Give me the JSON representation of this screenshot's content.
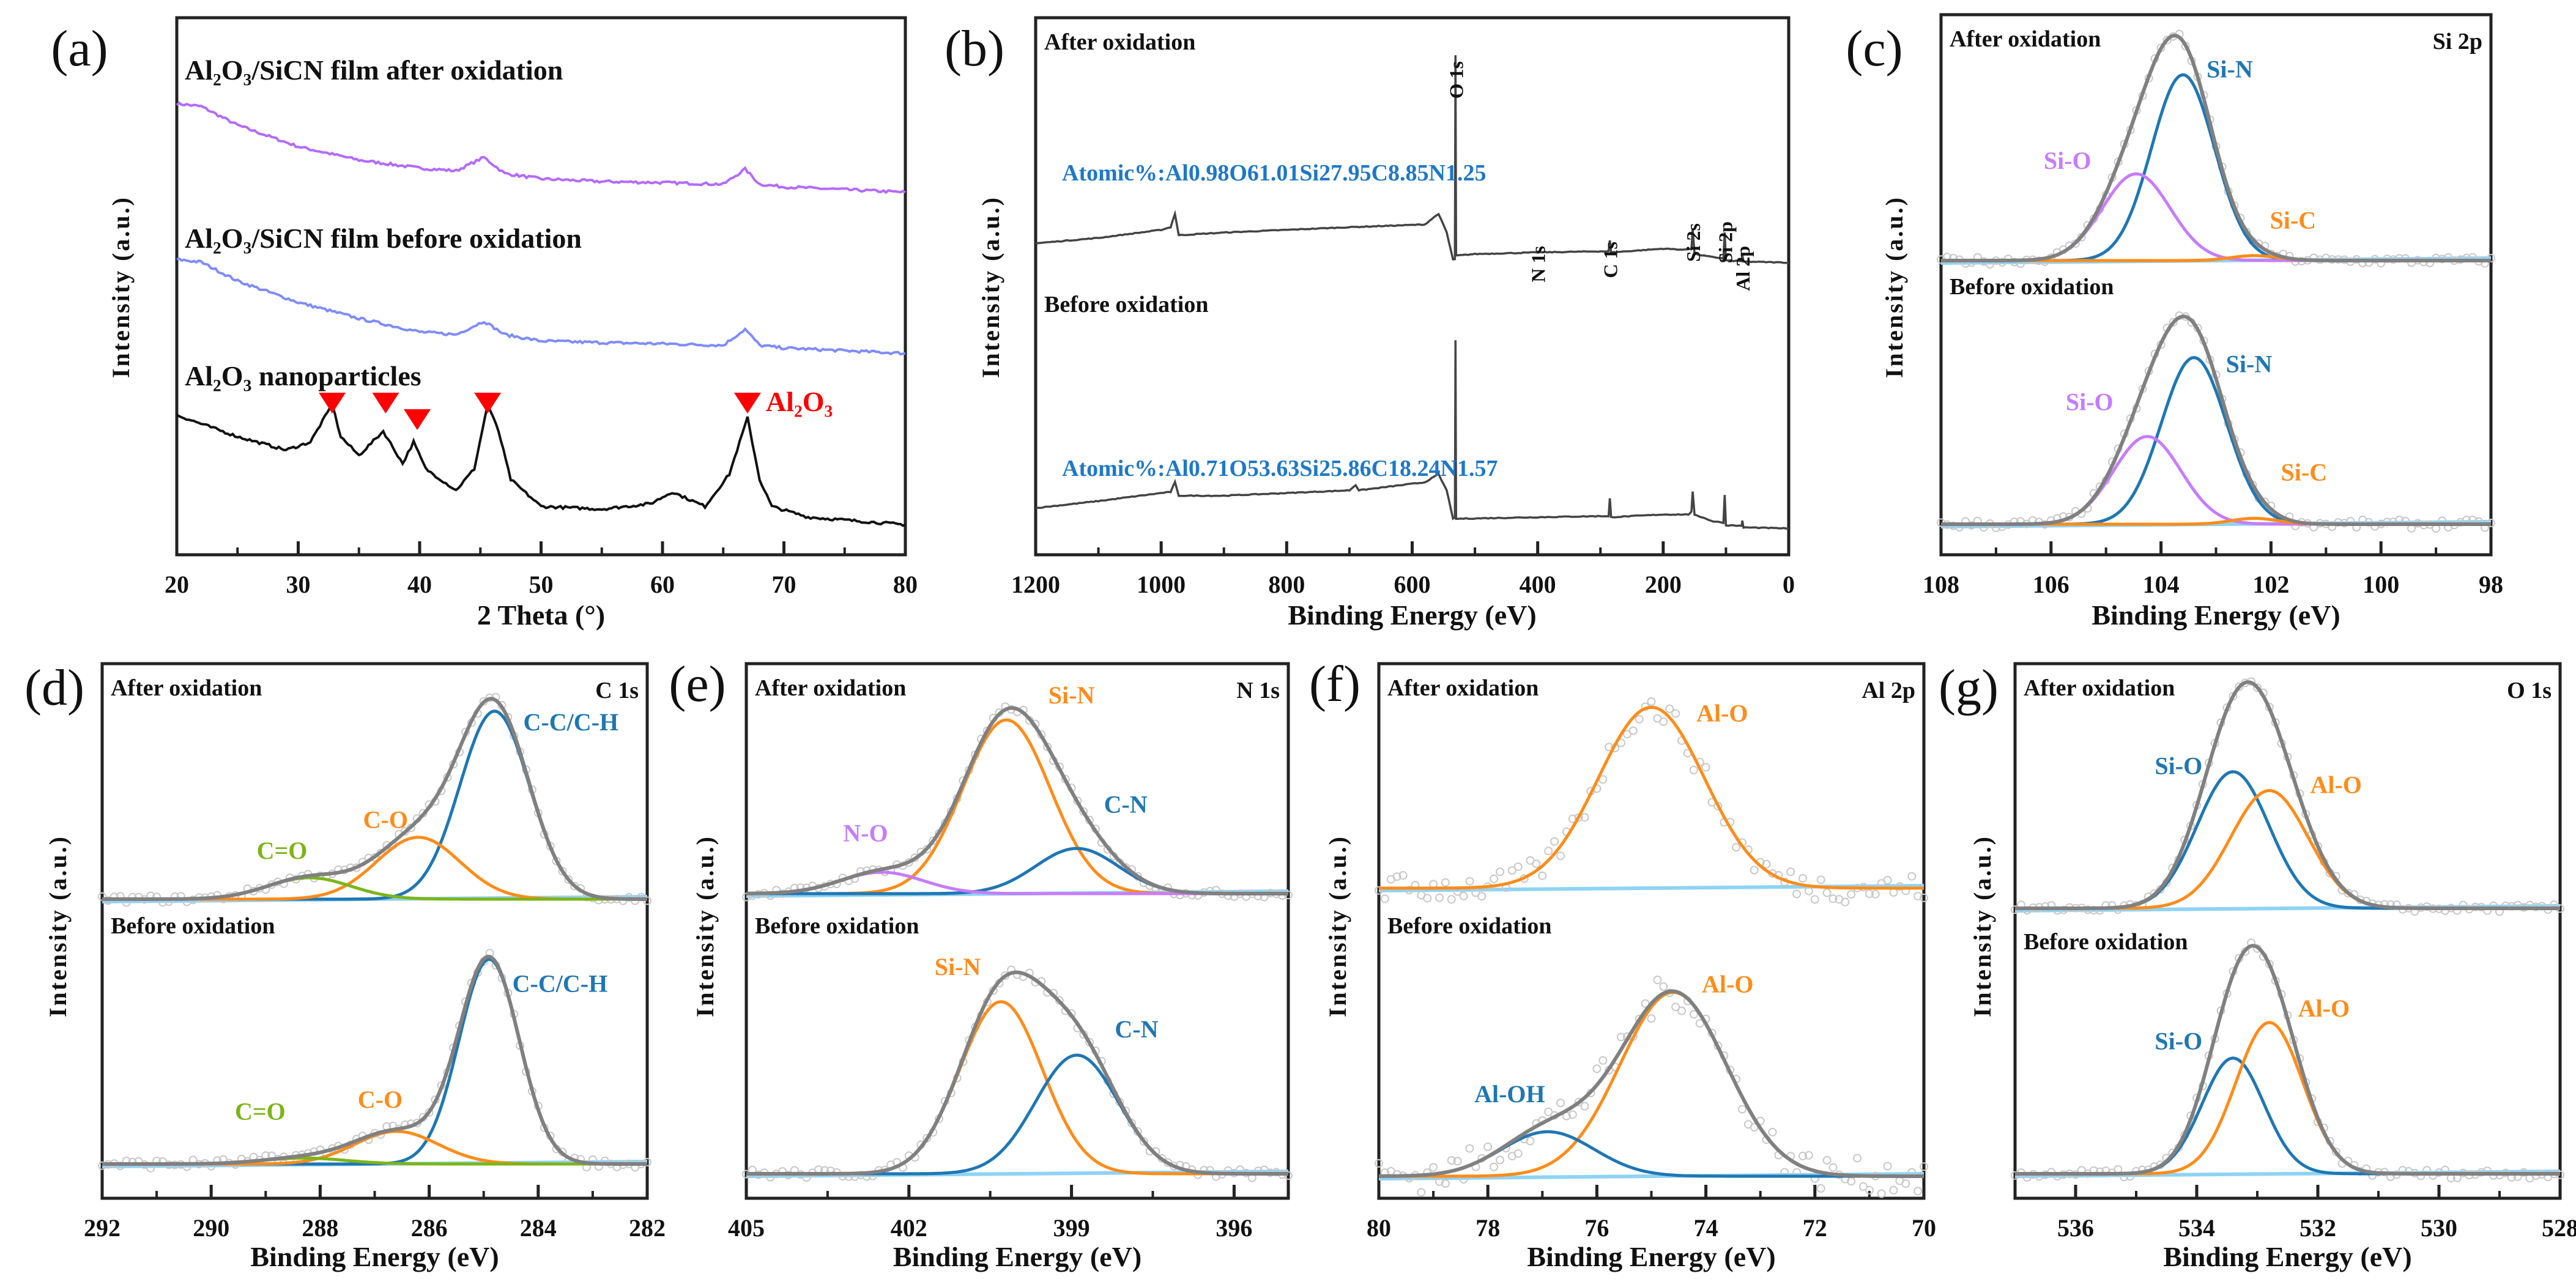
{
  "colors": {
    "blue": "#1f77b4",
    "purple": "#c77cff",
    "orange": "#ff8c1a",
    "green": "#7cb518",
    "gray": "#808080",
    "baseline": "#8fd3f5",
    "xrd_after": "#b36bff",
    "xrd_before": "#7f8cff",
    "xrd_nano": "#111111",
    "marker_red": "#ff0000",
    "atomic_blue": "#1e78c8"
  },
  "chart_data": [
    {
      "panel": "(a)",
      "type": "line",
      "xlabel": "2 Theta (°)",
      "ylabel": "Intensity (a.u.)",
      "xlim": [
        20,
        80
      ],
      "ylim": [
        0,
        100
      ],
      "xticks": [
        20,
        30,
        40,
        50,
        60,
        70,
        80
      ],
      "series": [
        {
          "name": "Al₂O₃/SiCN film after oxidation",
          "color": "#b36bff",
          "points": [
            [
              20,
              84
            ],
            [
              22,
              83.5
            ],
            [
              25,
              80
            ],
            [
              30,
              76
            ],
            [
              35,
              73.5
            ],
            [
              40,
              72
            ],
            [
              43,
              71.5
            ],
            [
              45.3,
              74
            ],
            [
              47,
              71
            ],
            [
              50,
              70
            ],
            [
              55,
              69.5
            ],
            [
              60,
              69.3
            ],
            [
              65,
              69
            ],
            [
              66.8,
              71.8
            ],
            [
              68,
              69
            ],
            [
              70,
              68.5
            ],
            [
              75,
              68
            ],
            [
              80,
              67.5
            ]
          ]
        },
        {
          "name": "Al₂O₃/SiCN film before oxidation",
          "color": "#7f8cff",
          "points": [
            [
              20,
              55
            ],
            [
              22,
              54.5
            ],
            [
              25,
              51
            ],
            [
              30,
              47
            ],
            [
              35,
              44
            ],
            [
              40,
              41.5
            ],
            [
              43,
              41
            ],
            [
              45.3,
              43.5
            ],
            [
              47,
              41
            ],
            [
              50,
              39.8
            ],
            [
              55,
              39.5
            ],
            [
              60,
              39.3
            ],
            [
              65,
              39
            ],
            [
              66.8,
              42
            ],
            [
              68,
              39
            ],
            [
              70,
              38.5
            ],
            [
              75,
              38
            ],
            [
              80,
              37.5
            ]
          ]
        },
        {
          "name": "Al₂O₃ nanoparticles",
          "color": "#111111",
          "points": [
            [
              20,
              26
            ],
            [
              25,
              22
            ],
            [
              29,
              19.5
            ],
            [
              31,
              21
            ],
            [
              32.8,
              28
            ],
            [
              33.5,
              22
            ],
            [
              35,
              18.5
            ],
            [
              37,
              23
            ],
            [
              38.6,
              17
            ],
            [
              39.5,
              21
            ],
            [
              40.5,
              16
            ],
            [
              43,
              12
            ],
            [
              44.5,
              16
            ],
            [
              45.6,
              28
            ],
            [
              46.5,
              23
            ],
            [
              47.5,
              14
            ],
            [
              50,
              9
            ],
            [
              55,
              8.5
            ],
            [
              59,
              9.5
            ],
            [
              60.8,
              11.7
            ],
            [
              63.5,
              9
            ],
            [
              65.5,
              15
            ],
            [
              67,
              25.5
            ],
            [
              68,
              14
            ],
            [
              69,
              9
            ],
            [
              72,
              7
            ],
            [
              80,
              5.6
            ]
          ]
        }
      ],
      "markers": {
        "x": [
          32.8,
          37.2,
          39.8,
          45.6,
          67.0
        ],
        "label": "Al₂O₃",
        "color": "#ff0000"
      }
    },
    {
      "panel": "(b)",
      "type": "line",
      "xlabel": "Binding Energy (eV)",
      "ylabel": "Intensity (a.u.)",
      "xlim": [
        1200,
        0
      ],
      "ylim": [
        0,
        100
      ],
      "xticks": [
        1200,
        1000,
        800,
        600,
        400,
        200,
        0
      ],
      "series": [
        {
          "name": "After oxidation",
          "color": "#444444",
          "atomic": "Atomic%:Al0.98O61.01Si27.95C8.85N1.25",
          "points": [
            [
              1200,
              58
            ],
            [
              1100,
              59
            ],
            [
              1000,
              60.5
            ],
            [
              985,
              61
            ],
            [
              978,
              63.5
            ],
            [
              972,
              59.5
            ],
            [
              900,
              60
            ],
            [
              700,
              61
            ],
            [
              580,
              61.5
            ],
            [
              558,
              63.5
            ],
            [
              545,
              60
            ],
            [
              535,
              55
            ],
            [
              532,
              55
            ],
            [
              531,
              93
            ],
            [
              530,
              55.7
            ],
            [
              500,
              56
            ],
            [
              400,
              56.3
            ],
            [
              300,
              56.5
            ],
            [
              287,
              56.5
            ],
            [
              285,
              58.5
            ],
            [
              283,
              56.3
            ],
            [
              200,
              57
            ],
            [
              165,
              56.8
            ],
            [
              155,
              57
            ],
            [
              153,
              60.6
            ],
            [
              150,
              56
            ],
            [
              120,
              55.4
            ],
            [
              104,
              55.2
            ],
            [
              102,
              60
            ],
            [
              100,
              54.8
            ],
            [
              80,
              54.7
            ],
            [
              75,
              54.7
            ],
            [
              74,
              55.8
            ],
            [
              72,
              54.6
            ],
            [
              0,
              54.4
            ]
          ]
        },
        {
          "name": "Before oxidation",
          "color": "#444444",
          "atomic": "Atomic%:Al0.71O53.63Si25.86C18.24N1.57",
          "points": [
            [
              1200,
              8.7
            ],
            [
              1100,
              10
            ],
            [
              1000,
              11.5
            ],
            [
              985,
              11.7
            ],
            [
              978,
              13.5
            ],
            [
              972,
              11
            ],
            [
              900,
              11
            ],
            [
              700,
              12
            ],
            [
              690,
              13
            ],
            [
              685,
              12
            ],
            [
              580,
              13.5
            ],
            [
              558,
              15
            ],
            [
              545,
              12
            ],
            [
              535,
              6.8
            ],
            [
              532,
              6.8
            ],
            [
              531,
              40
            ],
            [
              530,
              6.7
            ],
            [
              400,
              7
            ],
            [
              300,
              7.2
            ],
            [
              287,
              7.2
            ],
            [
              285,
              10.5
            ],
            [
              283,
              7
            ],
            [
              200,
              7.5
            ],
            [
              160,
              7.5
            ],
            [
              155,
              8
            ],
            [
              153,
              11.7
            ],
            [
              150,
              7.5
            ],
            [
              120,
              6.2
            ],
            [
              104,
              6
            ],
            [
              102,
              11.2
            ],
            [
              100,
              5.5
            ],
            [
              75,
              5.4
            ],
            [
              74,
              6.3
            ],
            [
              72,
              5.1
            ],
            [
              0,
              4.9
            ]
          ]
        }
      ],
      "peak_labels": [
        {
          "text": "O 1s",
          "x": 531
        },
        {
          "text": "N 1s",
          "x": 400
        },
        {
          "text": "C 1s",
          "x": 285
        },
        {
          "text": "Si 2s",
          "x": 153
        },
        {
          "text": "Si 2p",
          "x": 102
        },
        {
          "text": "Al 2p",
          "x": 74
        }
      ]
    },
    {
      "panel": "(c)",
      "type": "line",
      "title": "Si 2p",
      "xlabel": "Binding Energy (eV)",
      "ylabel": "Intensity (a.u.)",
      "xlim": [
        108,
        98
      ],
      "xticks": [
        108,
        106,
        104,
        102,
        100,
        98
      ],
      "subpanels": [
        {
          "label": "After oxidation",
          "show_envelope": true,
          "components": [
            {
              "name": "Si-N",
              "center": 103.6,
              "fwhm": 1.35,
              "amp": 0.75,
              "color": "#1f77b4",
              "label_x": 102.75,
              "label_y": 0.74
            },
            {
              "name": "Si-O",
              "center": 104.45,
              "fwhm": 1.45,
              "amp": 0.35,
              "color": "#c77cff",
              "label_x": 105.7,
              "label_y": 0.37
            },
            {
              "name": "Si-C",
              "center": 102.3,
              "fwhm": 1.0,
              "amp": 0.02,
              "color": "#ff8c1a",
              "label_x": 101.6,
              "label_y": 0.13
            }
          ]
        },
        {
          "label": "Before oxidation",
          "show_envelope": true,
          "components": [
            {
              "name": "Si-N",
              "center": 103.4,
              "fwhm": 1.4,
              "amp": 0.57,
              "color": "#1f77b4",
              "label_x": 102.4,
              "label_y": 0.52
            },
            {
              "name": "Si-O",
              "center": 104.25,
              "fwhm": 1.45,
              "amp": 0.3,
              "color": "#c77cff",
              "label_x": 105.3,
              "label_y": 0.39
            },
            {
              "name": "Si-C",
              "center": 102.3,
              "fwhm": 1.0,
              "amp": 0.02,
              "color": "#ff8c1a",
              "label_x": 101.4,
              "label_y": 0.15
            }
          ]
        }
      ]
    },
    {
      "panel": "(d)",
      "type": "line",
      "title": "C 1s",
      "xlabel": "Binding Energy (eV)",
      "ylabel": "Intensity (a.u.)",
      "xlim": [
        292,
        282
      ],
      "xticks": [
        292,
        290,
        288,
        286,
        284,
        282
      ],
      "subpanels": [
        {
          "label": "After oxidation",
          "show_envelope": true,
          "components": [
            {
              "name": "C-C/C-H",
              "center": 284.8,
              "fwhm": 1.5,
              "amp": 0.79,
              "color": "#1f77b4",
              "label_x": 283.4,
              "label_y": 0.71
            },
            {
              "name": "C-O",
              "center": 286.2,
              "fwhm": 1.8,
              "amp": 0.26,
              "color": "#ff8c1a",
              "label_x": 286.8,
              "label_y": 0.3
            },
            {
              "name": "C=O",
              "center": 288.2,
              "fwhm": 1.8,
              "amp": 0.09,
              "color": "#7cb518",
              "label_x": 288.7,
              "label_y": 0.17
            }
          ]
        },
        {
          "label": "Before oxidation",
          "show_envelope": true,
          "components": [
            {
              "name": "C-C/C-H",
              "center": 284.9,
              "fwhm": 1.3,
              "amp": 0.69,
              "color": "#1f77b4",
              "label_x": 283.6,
              "label_y": 0.58
            },
            {
              "name": "C-O",
              "center": 286.6,
              "fwhm": 1.8,
              "amp": 0.11,
              "color": "#ff8c1a",
              "label_x": 286.9,
              "label_y": 0.19
            },
            {
              "name": "C=O",
              "center": 288.3,
              "fwhm": 1.8,
              "amp": 0.02,
              "color": "#7cb518",
              "label_x": 289.1,
              "label_y": 0.15
            }
          ]
        }
      ]
    },
    {
      "panel": "(e)",
      "type": "line",
      "title": "N 1s",
      "xlabel": "Binding Energy (eV)",
      "ylabel": "Intensity (a.u.)",
      "xlim": [
        405,
        395
      ],
      "xticks": [
        405,
        402,
        399,
        396
      ],
      "subpanels": [
        {
          "label": "After oxidation",
          "show_envelope": true,
          "components": [
            {
              "name": "Si-N",
              "center": 400.2,
              "fwhm": 1.9,
              "amp": 0.73,
              "color": "#ff8c1a",
              "label_x": 399.0,
              "label_y": 0.8
            },
            {
              "name": "C-N",
              "center": 398.9,
              "fwhm": 1.8,
              "amp": 0.19,
              "color": "#1f77b4",
              "label_x": 398.0,
              "label_y": 0.34
            },
            {
              "name": "N-O",
              "center": 402.5,
              "fwhm": 1.8,
              "amp": 0.09,
              "color": "#c77cff",
              "label_x": 402.8,
              "label_y": 0.22
            }
          ]
        },
        {
          "label": "Before oxidation",
          "show_envelope": true,
          "components": [
            {
              "name": "Si-N",
              "center": 400.3,
              "fwhm": 1.8,
              "amp": 0.58,
              "color": "#ff8c1a",
              "label_x": 401.1,
              "label_y": 0.67
            },
            {
              "name": "C-N",
              "center": 398.9,
              "fwhm": 1.8,
              "amp": 0.4,
              "color": "#1f77b4",
              "label_x": 397.8,
              "label_y": 0.46
            }
          ]
        }
      ]
    },
    {
      "panel": "(f)",
      "type": "line",
      "title": "Al 2p",
      "xlabel": "Binding Energy (eV)",
      "ylabel": "Intensity (a.u.)",
      "xlim": [
        80,
        70
      ],
      "xticks": [
        80,
        78,
        76,
        74,
        72,
        70
      ],
      "subpanels": [
        {
          "label": "After oxidation",
          "show_envelope": false,
          "components": [
            {
              "name": "Al-O",
              "center": 75.0,
              "fwhm": 2.3,
              "amp": 0.76,
              "color": "#ff8c1a",
              "label_x": 73.7,
              "label_y": 0.7
            }
          ]
        },
        {
          "label": "Before oxidation",
          "show_envelope": true,
          "components": [
            {
              "name": "Al-O",
              "center": 74.6,
              "fwhm": 2.3,
              "amp": 0.62,
              "color": "#ff8c1a",
              "label_x": 73.6,
              "label_y": 0.62
            },
            {
              "name": "Al-OH",
              "center": 76.9,
              "fwhm": 2.0,
              "amp": 0.15,
              "color": "#1f77b4",
              "label_x": 77.6,
              "label_y": 0.25
            }
          ]
        }
      ]
    },
    {
      "panel": "(g)",
      "type": "line",
      "title": "O 1s",
      "xlabel": "Binding Energy (eV)",
      "ylabel": "Intensity (a.u.)",
      "xlim": [
        537,
        528
      ],
      "xticks": [
        536,
        534,
        532,
        530,
        528
      ],
      "subpanels": [
        {
          "label": "After oxidation",
          "show_envelope": true,
          "components": [
            {
              "name": "Si-O",
              "center": 533.4,
              "fwhm": 1.4,
              "amp": 0.58,
              "color": "#1f77b4",
              "label_x": 534.3,
              "label_y": 0.57
            },
            {
              "name": "Al-O",
              "center": 532.8,
              "fwhm": 1.5,
              "amp": 0.5,
              "color": "#ff8c1a",
              "label_x": 531.7,
              "label_y": 0.49
            }
          ]
        },
        {
          "label": "Before oxidation",
          "show_envelope": true,
          "components": [
            {
              "name": "Si-O",
              "center": 533.4,
              "fwhm": 1.2,
              "amp": 0.39,
              "color": "#1f77b4",
              "label_x": 534.3,
              "label_y": 0.42
            },
            {
              "name": "Al-O",
              "center": 532.8,
              "fwhm": 1.3,
              "amp": 0.51,
              "color": "#ff8c1a",
              "label_x": 531.9,
              "label_y": 0.53
            }
          ]
        }
      ]
    }
  ]
}
